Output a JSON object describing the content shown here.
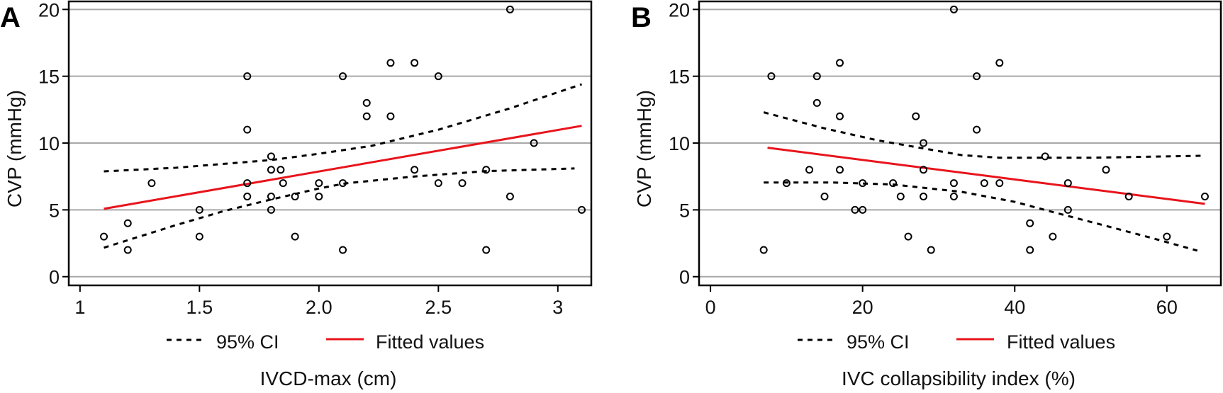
{
  "chart_data": [
    {
      "panel_label": "A",
      "type": "scatter",
      "xlabel": "IVCD-max (cm)",
      "ylabel": "CVP (mmHg)",
      "xlim": [
        0.953,
        3.14
      ],
      "ylim": [
        -0.65,
        20.6
      ],
      "xticks": [
        1,
        1.5,
        2.0,
        2.5,
        3
      ],
      "xtick_labels": [
        "1",
        "1.5",
        "2.0",
        "2.5",
        "3"
      ],
      "yticks": [
        0,
        5,
        10,
        15,
        20
      ],
      "ytick_labels": [
        "0",
        "5",
        "10",
        "15",
        "20"
      ],
      "grid": "horizontal",
      "legend": {
        "placement": "bottom",
        "entries": [
          {
            "label": "95% CI",
            "style": "dashed",
            "color": "#000000"
          },
          {
            "label": "Fitted values",
            "style": "solid",
            "color": "#e8141c"
          }
        ]
      },
      "series": [
        {
          "name": "Observations",
          "points": [
            [
              1.1,
              3
            ],
            [
              1.2,
              4
            ],
            [
              1.2,
              2
            ],
            [
              1.3,
              7
            ],
            [
              1.5,
              5
            ],
            [
              1.5,
              3
            ],
            [
              1.7,
              15
            ],
            [
              1.7,
              11
            ],
            [
              1.7,
              7
            ],
            [
              1.7,
              6
            ],
            [
              1.8,
              9
            ],
            [
              1.8,
              8
            ],
            [
              1.8,
              6
            ],
            [
              1.8,
              5
            ],
            [
              1.84,
              8
            ],
            [
              1.85,
              7
            ],
            [
              1.9,
              6
            ],
            [
              1.9,
              3
            ],
            [
              2.0,
              7
            ],
            [
              2.0,
              6
            ],
            [
              2.1,
              15
            ],
            [
              2.1,
              7
            ],
            [
              2.1,
              2
            ],
            [
              2.2,
              13
            ],
            [
              2.2,
              12
            ],
            [
              2.3,
              16
            ],
            [
              2.3,
              12
            ],
            [
              2.4,
              16
            ],
            [
              2.4,
              8
            ],
            [
              2.5,
              15
            ],
            [
              2.5,
              7
            ],
            [
              2.6,
              7
            ],
            [
              2.7,
              8
            ],
            [
              2.7,
              2
            ],
            [
              2.8,
              20
            ],
            [
              2.8,
              6
            ],
            [
              2.9,
              10
            ],
            [
              3.1,
              5
            ]
          ]
        },
        {
          "name": "Fitted values",
          "line": [
            [
              1.1,
              5.08
            ],
            [
              3.1,
              11.29
            ]
          ]
        },
        {
          "name": "95% CI upper",
          "line": [
            [
              1.1,
              7.88
            ],
            [
              1.4,
              8.15
            ],
            [
              1.8,
              8.73
            ],
            [
              2.0,
              9.2
            ],
            [
              2.22,
              9.79
            ],
            [
              2.5,
              11.0
            ],
            [
              2.8,
              12.6
            ],
            [
              3.1,
              14.4
            ]
          ]
        },
        {
          "name": "95% CI lower",
          "line": [
            [
              1.1,
              2.17
            ],
            [
              1.4,
              3.85
            ],
            [
              1.6,
              4.9
            ],
            [
              1.8,
              5.78
            ],
            [
              2.0,
              6.6
            ],
            [
              2.11,
              6.98
            ],
            [
              2.4,
              7.5
            ],
            [
              2.7,
              7.9
            ],
            [
              3.07,
              8.1
            ]
          ]
        }
      ]
    },
    {
      "panel_label": "B",
      "type": "scatter",
      "xlabel": "IVC collapsibility index (%)",
      "ylabel": "CVP (mmHg)",
      "xlim": [
        -1.5,
        67.1
      ],
      "ylim": [
        -0.65,
        20.6
      ],
      "xticks": [
        0,
        20,
        40,
        60
      ],
      "xtick_labels": [
        "0",
        "20",
        "40",
        "60"
      ],
      "yticks": [
        0,
        5,
        10,
        15,
        20
      ],
      "ytick_labels": [
        "0",
        "5",
        "10",
        "15",
        "20"
      ],
      "grid": "horizontal",
      "legend": {
        "placement": "bottom",
        "entries": [
          {
            "label": "95% CI",
            "style": "dashed",
            "color": "#000000"
          },
          {
            "label": "Fitted values",
            "style": "solid",
            "color": "#e8141c"
          }
        ]
      },
      "series": [
        {
          "name": "Observations",
          "points": [
            [
              7,
              2
            ],
            [
              8,
              15
            ],
            [
              10,
              7
            ],
            [
              13,
              8
            ],
            [
              14,
              15
            ],
            [
              14,
              13
            ],
            [
              15,
              6
            ],
            [
              17,
              16
            ],
            [
              17,
              12
            ],
            [
              17,
              8
            ],
            [
              19,
              5
            ],
            [
              20,
              5
            ],
            [
              20,
              7
            ],
            [
              24,
              7
            ],
            [
              25,
              6
            ],
            [
              26,
              3
            ],
            [
              27,
              12
            ],
            [
              28,
              10
            ],
            [
              28,
              8
            ],
            [
              28,
              6
            ],
            [
              29,
              2
            ],
            [
              32,
              20
            ],
            [
              32,
              7
            ],
            [
              32,
              6
            ],
            [
              35,
              15
            ],
            [
              35,
              11
            ],
            [
              36,
              7
            ],
            [
              38,
              16
            ],
            [
              38,
              7
            ],
            [
              42,
              4
            ],
            [
              42,
              2
            ],
            [
              44,
              9
            ],
            [
              45,
              3
            ],
            [
              47,
              7
            ],
            [
              47,
              5
            ],
            [
              52,
              8
            ],
            [
              55,
              6
            ],
            [
              60,
              3
            ],
            [
              65,
              6
            ]
          ]
        },
        {
          "name": "Fitted values",
          "line": [
            [
              7.5,
              9.65
            ],
            [
              65,
              5.45
            ]
          ]
        },
        {
          "name": "95% CI upper",
          "line": [
            [
              7,
              12.3
            ],
            [
              15,
              11.1
            ],
            [
              22,
              10.2
            ],
            [
              28,
              9.6
            ],
            [
              33,
              9.1
            ],
            [
              38,
              8.9
            ],
            [
              50,
              8.9
            ],
            [
              64.5,
              9.05
            ]
          ]
        },
        {
          "name": "95% CI lower",
          "line": [
            [
              7,
              7.05
            ],
            [
              16,
              7.05
            ],
            [
              24,
              6.9
            ],
            [
              33,
              6.35
            ],
            [
              40,
              5.6
            ],
            [
              44.6,
              4.9
            ],
            [
              52,
              3.8
            ],
            [
              58,
              2.9
            ],
            [
              64,
              1.95
            ]
          ]
        }
      ]
    }
  ]
}
